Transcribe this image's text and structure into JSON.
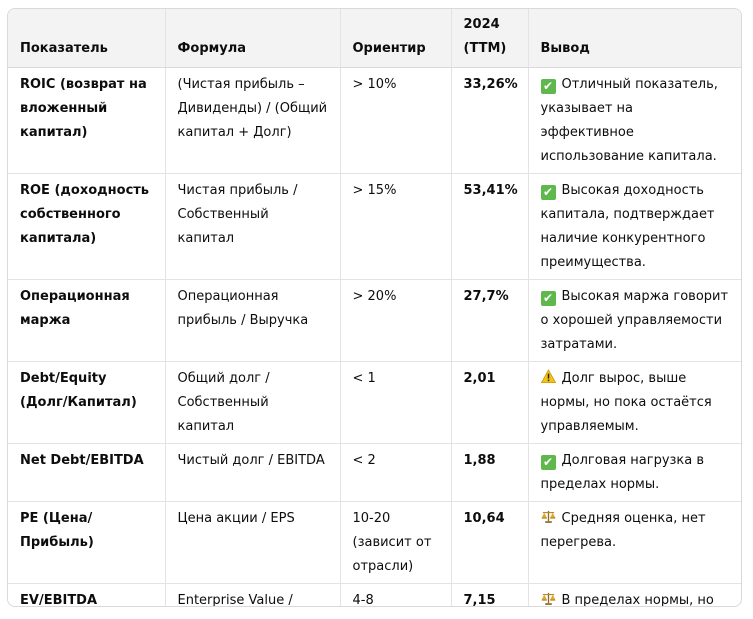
{
  "table": {
    "headers": [
      "Показатель",
      "Формула",
      "Ориентир",
      "2024 (TTM)",
      "Вывод"
    ],
    "rows": [
      {
        "metric": "ROIC (возврат на вложенный капитал)",
        "formula": "(Чистая прибыль – Дивиденды) / (Общий капитал + Долг)",
        "target": "> 10%",
        "value": "33,26%",
        "icon": "check-icon",
        "conclusion": "Отличный показатель, указывает на эффективное использование капитала."
      },
      {
        "metric": "ROE (доходность собственного капитала)",
        "formula": "Чистая прибыль / Собственный капитал",
        "target": "> 15%",
        "value": "53,41%",
        "icon": "check-icon",
        "conclusion": "Высокая доходность капитала, подтверждает наличие конкурентного преимущества."
      },
      {
        "metric": "Операционная маржа",
        "formula": "Операционная прибыль / Выручка",
        "target": "> 20%",
        "value": "27,7%",
        "icon": "check-icon",
        "conclusion": "Высокая маржа говорит о хорошей управляемости затратами."
      },
      {
        "metric": "Debt/Equity (Долг/Капитал)",
        "formula": "Общий долг / Собственный капитал",
        "target": "< 1",
        "value": "2,01",
        "icon": "warning-icon",
        "conclusion": "Долг вырос, выше нормы, но пока остаётся управляемым."
      },
      {
        "metric": "Net Debt/EBITDA",
        "formula": "Чистый долг / EBITDA",
        "target": "< 2",
        "value": "1,88",
        "icon": "check-icon",
        "conclusion": "Долговая нагрузка в пределах нормы."
      },
      {
        "metric": "PE (Цена/Прибыль)",
        "formula": "Цена акции / EPS",
        "target": "10-20 (зависит от отрасли)",
        "value": "10,64",
        "icon": "scales-icon",
        "conclusion": "Средняя оценка, нет перегрева."
      },
      {
        "metric": "EV/EBITDA",
        "formula": "Enterprise Value / EBITDA",
        "target": "4-8",
        "value": "7,15",
        "icon": "scales-icon",
        "conclusion": "В пределах нормы, но ближе к верхней границе."
      }
    ]
  },
  "colors": {
    "header_bg": "#f3f3f3",
    "border": "#e3e3e3",
    "check": "#5fb84c",
    "warning": "#f2c21b"
  }
}
